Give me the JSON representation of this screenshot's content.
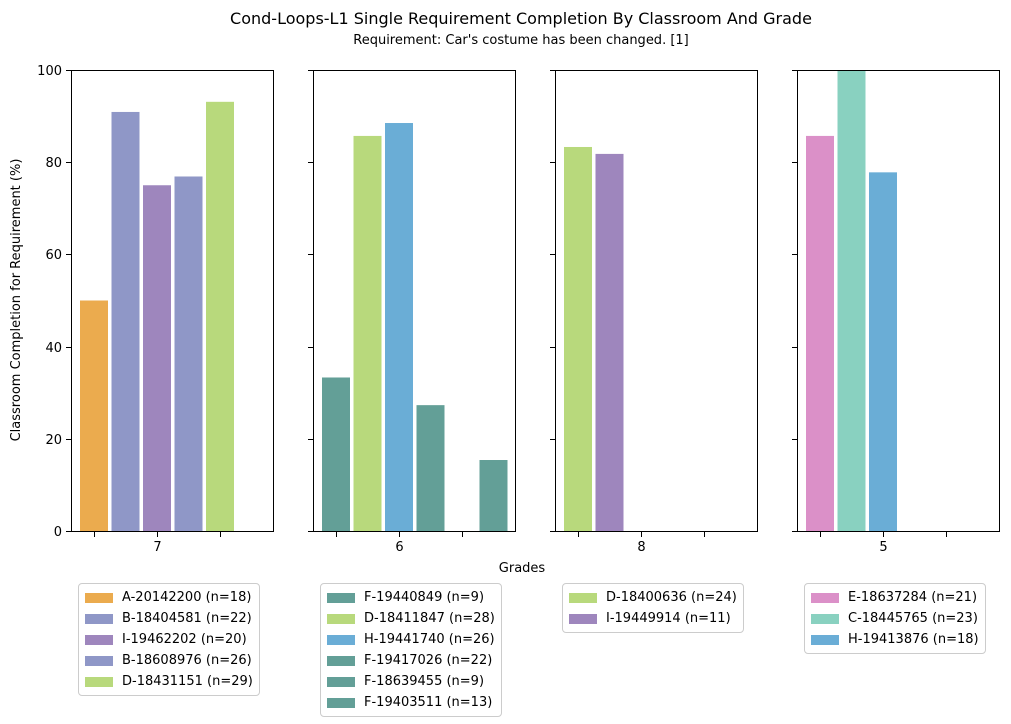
{
  "chart_data": {
    "type": "bar",
    "title": "Cond-Loops-L1 Single Requirement Completion By Classroom And Grade",
    "subtitle": "Requirement: Car's costume has been changed. [1]",
    "xlabel": "Grades",
    "ylabel": "Classroom Completion for Requirement (%)",
    "ylim": [
      0,
      100
    ],
    "yticks": [
      "0",
      "20",
      "40",
      "60",
      "80",
      "100"
    ],
    "grid": false,
    "legend_placement": "below each panel",
    "panels": [
      {
        "grade": "7",
        "series": [
          {
            "name": "A-20142200 (n=18)",
            "value": 50.0,
            "color": "#ebab4e"
          },
          {
            "name": "B-18404581 (n=22)",
            "value": 90.9,
            "color": "#8f97c7"
          },
          {
            "name": "I-19462202 (n=20)",
            "value": 75.0,
            "color": "#9e86bd"
          },
          {
            "name": "B-18608976 (n=26)",
            "value": 76.9,
            "color": "#8f97c7"
          },
          {
            "name": "D-18431151 (n=29)",
            "value": 93.1,
            "color": "#b8d97c"
          }
        ]
      },
      {
        "grade": "6",
        "series": [
          {
            "name": "F-19440849 (n=9)",
            "value": 33.3,
            "color": "#639f97"
          },
          {
            "name": "D-18411847 (n=28)",
            "value": 85.7,
            "color": "#b8d97c"
          },
          {
            "name": "H-19441740 (n=26)",
            "value": 88.5,
            "color": "#6aadd6"
          },
          {
            "name": "F-19417026 (n=22)",
            "value": 27.3,
            "color": "#639f97"
          },
          {
            "name": "F-18639455 (n=9)",
            "value": 0,
            "color": "#639f97"
          },
          {
            "name": "F-19403511 (n=13)",
            "value": 15.4,
            "color": "#639f97"
          }
        ]
      },
      {
        "grade": "8",
        "series": [
          {
            "name": "D-18400636 (n=24)",
            "value": 83.3,
            "color": "#b8d97c"
          },
          {
            "name": "I-19449914 (n=11)",
            "value": 81.8,
            "color": "#9e86bd"
          }
        ]
      },
      {
        "grade": "5",
        "series": [
          {
            "name": "E-18637284 (n=21)",
            "value": 85.7,
            "color": "#db90c8"
          },
          {
            "name": "C-18445765 (n=23)",
            "value": 100.0,
            "color": "#89d1c0"
          },
          {
            "name": "H-19413876 (n=18)",
            "value": 77.8,
            "color": "#6aadd6"
          }
        ]
      }
    ]
  }
}
